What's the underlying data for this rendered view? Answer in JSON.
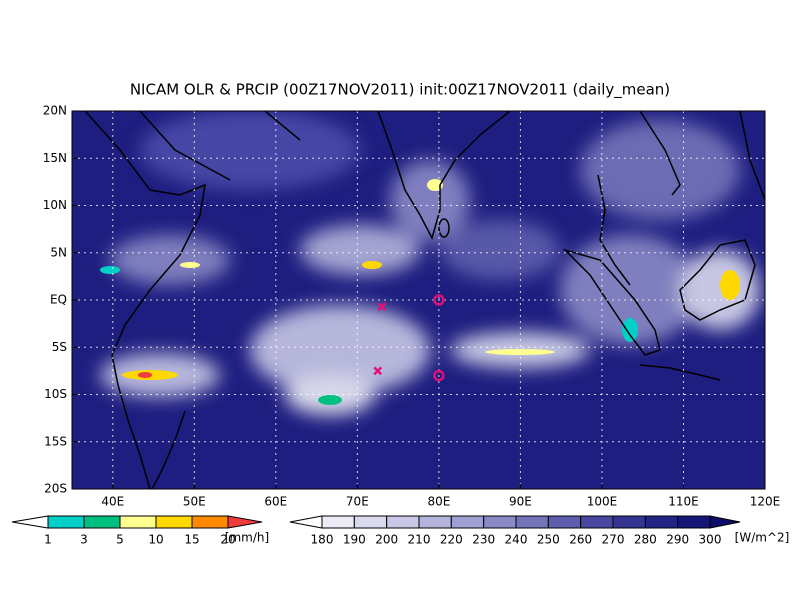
{
  "map": {
    "title": "NICAM OLR & PRCIP (00Z17NOV2011) init:00Z17NOV2011 (daily_mean)",
    "xlim": [
      35,
      120
    ],
    "ylim": [
      -20,
      20
    ],
    "xticks": [
      {
        "value": 40,
        "label": "40E"
      },
      {
        "value": 50,
        "label": "50E"
      },
      {
        "value": 60,
        "label": "60E"
      },
      {
        "value": 70,
        "label": "70E"
      },
      {
        "value": 80,
        "label": "80E"
      },
      {
        "value": 90,
        "label": "90E"
      },
      {
        "value": 100,
        "label": "100E"
      },
      {
        "value": 110,
        "label": "110E"
      },
      {
        "value": 120,
        "label": "120E"
      }
    ],
    "yticks": [
      {
        "value": 20,
        "label": "20N"
      },
      {
        "value": 15,
        "label": "15N"
      },
      {
        "value": 10,
        "label": "10N"
      },
      {
        "value": 5,
        "label": "5N"
      },
      {
        "value": 0,
        "label": "EQ"
      },
      {
        "value": -5,
        "label": "5S"
      },
      {
        "value": -10,
        "label": "10S"
      },
      {
        "value": -15,
        "label": "15S"
      },
      {
        "value": -20,
        "label": "20S"
      }
    ],
    "grid": true,
    "markers": [
      {
        "lon": 73,
        "lat": -0.7,
        "shape": "x",
        "color": "#e0107a"
      },
      {
        "lon": 72.5,
        "lat": -7.5,
        "shape": "x",
        "color": "#e0107a"
      },
      {
        "lon": 80,
        "lat": 0,
        "shape": "o",
        "color": "#e0107a"
      },
      {
        "lon": 80,
        "lat": -8,
        "shape": "o",
        "color": "#e0107a"
      }
    ],
    "colorbars": [
      {
        "unit": "[mm/h]",
        "ticks": [
          1,
          3,
          5,
          10,
          15,
          20
        ],
        "colors": [
          "#ffffff",
          "#00d0c8",
          "#00c080",
          "#ffff90",
          "#ffd800",
          "#ff8a00",
          "#f03c3c"
        ]
      },
      {
        "unit": "[W/m^2]",
        "ticks": [
          180,
          190,
          200,
          210,
          220,
          230,
          240,
          250,
          260,
          270,
          280,
          290,
          300
        ],
        "colors": [
          "#ffffff",
          "#ececf6",
          "#dadaee",
          "#c8c8e6",
          "#b4b4dc",
          "#a0a0d2",
          "#8a8ac6",
          "#7474ba",
          "#5e5eae",
          "#4848a0",
          "#343492",
          "#242484",
          "#161676",
          "#0c0c6a"
        ]
      }
    ]
  }
}
